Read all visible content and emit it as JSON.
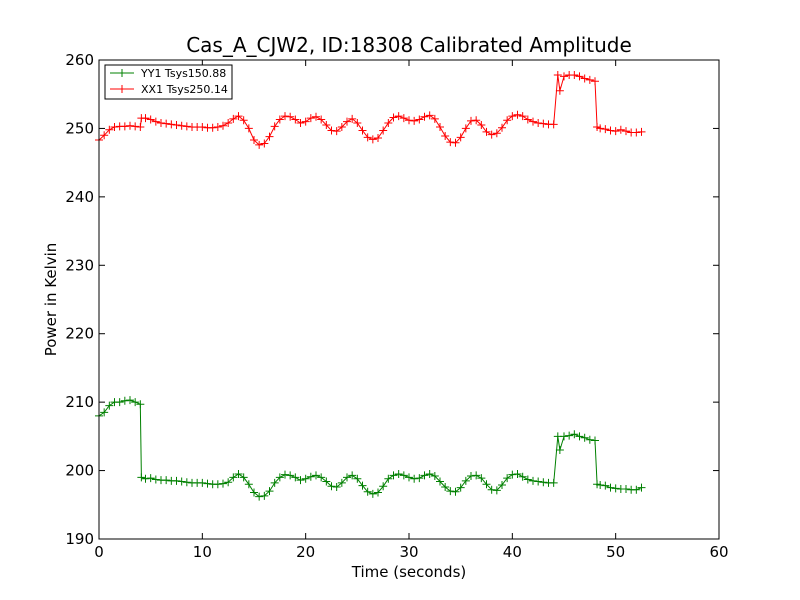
{
  "chart_data": {
    "type": "line",
    "title": "Cas_A_CJW2, ID:18308 Calibrated Amplitude",
    "xlabel": "Time (seconds)",
    "ylabel": "Power in Kelvin",
    "xlim": [
      0,
      60
    ],
    "ylim": [
      190,
      260
    ],
    "xticks": [
      0,
      10,
      20,
      30,
      40,
      50,
      60
    ],
    "yticks": [
      190,
      200,
      210,
      220,
      230,
      240,
      250,
      260
    ],
    "grid": false,
    "legend_position": "top-left",
    "series": [
      {
        "name": "YY1 Tsys150.88",
        "color": "#008000",
        "marker": "plus",
        "x": [
          0.0,
          0.5,
          1.0,
          1.5,
          2.0,
          2.5,
          3.0,
          3.5,
          4.0,
          4.1,
          4.5,
          5.0,
          5.5,
          6.0,
          6.5,
          7.0,
          7.5,
          8.0,
          8.5,
          9.0,
          9.5,
          10.0,
          10.5,
          11.0,
          11.5,
          12.0,
          12.5,
          13.0,
          13.5,
          14.0,
          14.5,
          15.0,
          15.5,
          16.0,
          16.5,
          17.0,
          17.5,
          18.0,
          18.5,
          19.0,
          19.5,
          20.0,
          20.5,
          21.0,
          21.5,
          22.0,
          22.5,
          23.0,
          23.5,
          24.0,
          24.5,
          25.0,
          25.5,
          26.0,
          26.5,
          27.0,
          27.5,
          28.0,
          28.5,
          29.0,
          29.5,
          30.0,
          30.5,
          31.0,
          31.5,
          32.0,
          32.5,
          33.0,
          33.5,
          34.0,
          34.5,
          35.0,
          35.5,
          36.0,
          36.5,
          37.0,
          37.5,
          38.0,
          38.5,
          39.0,
          39.5,
          40.0,
          40.5,
          41.0,
          41.5,
          42.0,
          42.5,
          43.0,
          43.5,
          44.0,
          44.4,
          44.6,
          45.0,
          45.5,
          46.0,
          46.5,
          47.0,
          47.5,
          48.0,
          48.2,
          48.5,
          49.0,
          49.5,
          50.0,
          50.5,
          51.0,
          51.5,
          52.0,
          52.5
        ],
        "values": [
          208.0,
          208.5,
          209.5,
          210.0,
          210.0,
          210.2,
          210.3,
          210.0,
          209.7,
          199.0,
          198.8,
          198.9,
          198.7,
          198.6,
          198.6,
          198.5,
          198.5,
          198.4,
          198.3,
          198.2,
          198.2,
          198.2,
          198.1,
          198.0,
          198.0,
          198.1,
          198.3,
          199.0,
          199.5,
          199.0,
          198.0,
          196.8,
          196.2,
          196.3,
          197.0,
          198.2,
          199.0,
          199.4,
          199.3,
          199.0,
          198.6,
          198.8,
          199.1,
          199.3,
          199.0,
          198.4,
          197.7,
          197.6,
          198.2,
          199.0,
          199.3,
          198.8,
          197.8,
          196.9,
          196.6,
          196.8,
          197.7,
          198.8,
          199.3,
          199.5,
          199.3,
          199.0,
          198.8,
          198.9,
          199.3,
          199.5,
          199.2,
          198.4,
          197.6,
          197.0,
          196.9,
          197.5,
          198.5,
          199.2,
          199.3,
          198.9,
          198.0,
          197.2,
          197.1,
          197.9,
          198.9,
          199.4,
          199.5,
          199.1,
          198.7,
          198.5,
          198.4,
          198.3,
          198.2,
          198.2,
          205.0,
          203.0,
          205.0,
          205.1,
          205.3,
          205.0,
          204.8,
          204.5,
          204.4,
          198.0,
          197.9,
          197.8,
          197.5,
          197.4,
          197.3,
          197.3,
          197.2,
          197.2,
          197.5
        ]
      },
      {
        "name": "XX1 Tsys250.14",
        "color": "#ff0000",
        "marker": "plus",
        "x": [
          0.0,
          0.5,
          1.0,
          1.5,
          2.0,
          2.5,
          3.0,
          3.5,
          4.0,
          4.1,
          4.5,
          5.0,
          5.5,
          6.0,
          6.5,
          7.0,
          7.5,
          8.0,
          8.5,
          9.0,
          9.5,
          10.0,
          10.5,
          11.0,
          11.5,
          12.0,
          12.5,
          13.0,
          13.5,
          14.0,
          14.5,
          15.0,
          15.5,
          16.0,
          16.5,
          17.0,
          17.5,
          18.0,
          18.5,
          19.0,
          19.5,
          20.0,
          20.5,
          21.0,
          21.5,
          22.0,
          22.5,
          23.0,
          23.5,
          24.0,
          24.5,
          25.0,
          25.5,
          26.0,
          26.5,
          27.0,
          27.5,
          28.0,
          28.5,
          29.0,
          29.5,
          30.0,
          30.5,
          31.0,
          31.5,
          32.0,
          32.5,
          33.0,
          33.5,
          34.0,
          34.5,
          35.0,
          35.5,
          36.0,
          36.5,
          37.0,
          37.5,
          38.0,
          38.5,
          39.0,
          39.5,
          40.0,
          40.5,
          41.0,
          41.5,
          42.0,
          42.5,
          43.0,
          43.5,
          44.0,
          44.4,
          44.6,
          45.0,
          45.5,
          46.0,
          46.5,
          47.0,
          47.5,
          48.0,
          48.2,
          48.5,
          49.0,
          49.5,
          50.0,
          50.5,
          51.0,
          51.5,
          52.0,
          52.5
        ],
        "values": [
          248.3,
          249.0,
          249.8,
          250.2,
          250.3,
          250.3,
          250.4,
          250.3,
          250.2,
          251.5,
          251.5,
          251.3,
          251.0,
          250.8,
          250.7,
          250.6,
          250.5,
          250.4,
          250.3,
          250.2,
          250.2,
          250.2,
          250.1,
          250.1,
          250.2,
          250.4,
          250.8,
          251.4,
          251.8,
          251.2,
          250.0,
          248.3,
          247.6,
          247.8,
          248.8,
          250.3,
          251.3,
          251.8,
          251.7,
          251.3,
          250.8,
          251.0,
          251.5,
          251.7,
          251.3,
          250.5,
          249.7,
          249.6,
          250.2,
          251.0,
          251.4,
          250.8,
          249.7,
          248.7,
          248.4,
          248.6,
          249.7,
          250.8,
          251.6,
          251.8,
          251.5,
          251.2,
          251.1,
          251.3,
          251.7,
          251.9,
          251.4,
          250.2,
          248.9,
          248.0,
          247.9,
          248.7,
          250.0,
          251.1,
          251.2,
          250.5,
          249.5,
          249.1,
          249.3,
          250.1,
          251.2,
          251.8,
          252.0,
          251.8,
          251.3,
          251.0,
          250.8,
          250.7,
          250.6,
          250.6,
          257.8,
          255.5,
          257.6,
          257.8,
          257.8,
          257.6,
          257.3,
          257.1,
          256.9,
          250.2,
          250.0,
          249.9,
          249.7,
          249.6,
          249.8,
          249.6,
          249.4,
          249.4,
          249.5
        ]
      }
    ]
  }
}
